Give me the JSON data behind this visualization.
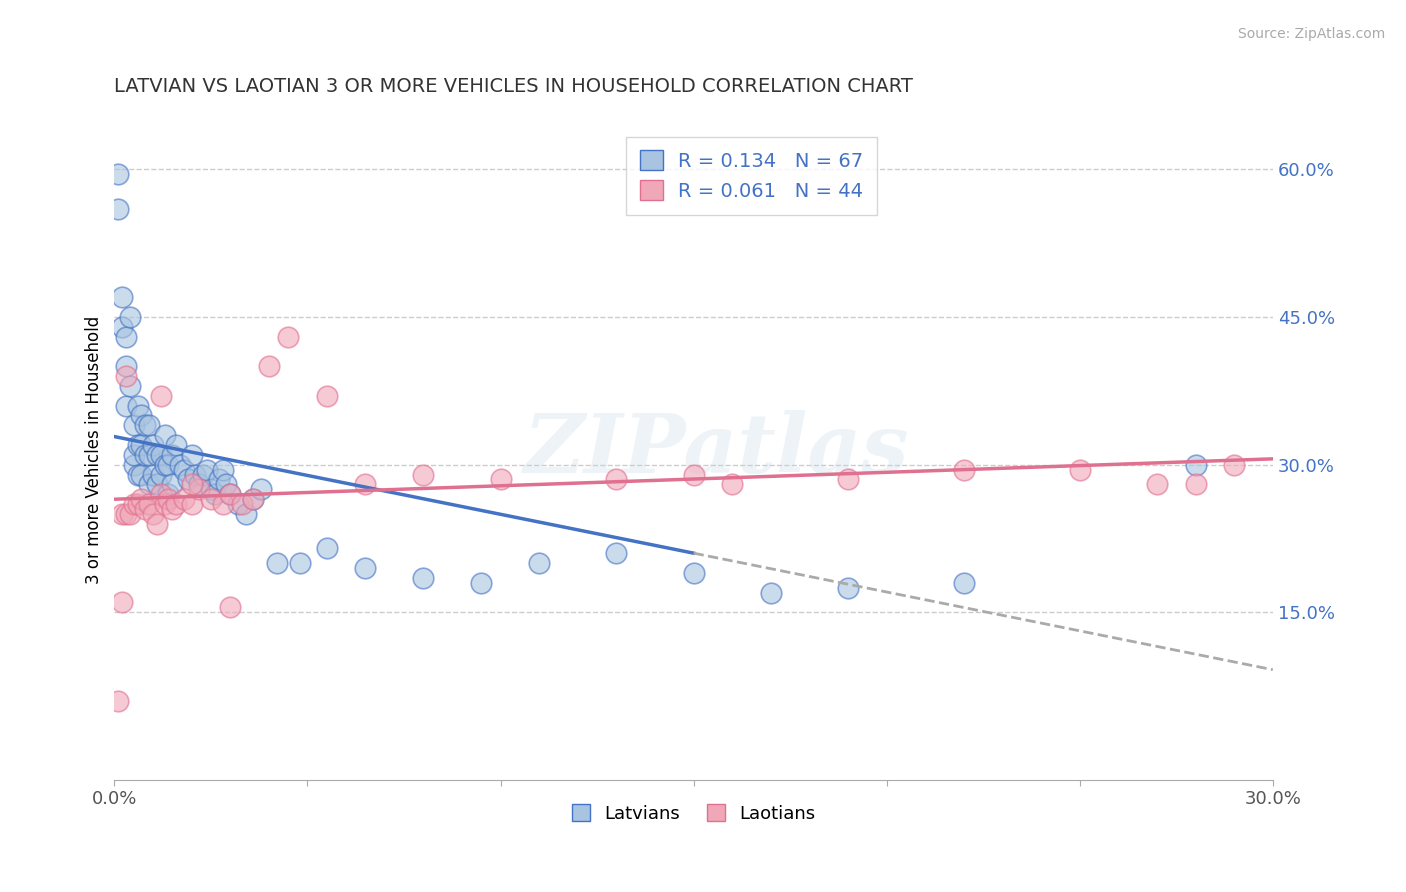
{
  "title": "LATVIAN VS LAOTIAN 3 OR MORE VEHICLES IN HOUSEHOLD CORRELATION CHART",
  "source": "Source: ZipAtlas.com",
  "ylabel": "3 or more Vehicles in Household",
  "xlabel": "",
  "xlim": [
    0.0,
    0.3
  ],
  "ylim": [
    -0.02,
    0.65
  ],
  "yticks": [
    0.0,
    0.15,
    0.3,
    0.45,
    0.6
  ],
  "ytick_labels": [
    "",
    "15.0%",
    "30.0%",
    "45.0%",
    "60.0%"
  ],
  "xticks": [
    0.0,
    0.05,
    0.1,
    0.15,
    0.2,
    0.25,
    0.3
  ],
  "xtick_labels": [
    "0.0%",
    "",
    "",
    "",
    "",
    "",
    "30.0%"
  ],
  "background_color": "#ffffff",
  "grid_color": "#cccccc",
  "latvian_color": "#a8c4e0",
  "laotian_color": "#f0a8b8",
  "latvian_line_color": "#4472c4",
  "laotian_line_color": "#e07090",
  "R_latvian": 0.134,
  "N_latvian": 67,
  "R_laotian": 0.061,
  "N_laotian": 44,
  "watermark": "ZIPatlas",
  "latvians_x": [
    0.001,
    0.001,
    0.002,
    0.002,
    0.003,
    0.003,
    0.003,
    0.004,
    0.004,
    0.005,
    0.005,
    0.005,
    0.006,
    0.006,
    0.006,
    0.007,
    0.007,
    0.007,
    0.008,
    0.008,
    0.009,
    0.009,
    0.009,
    0.01,
    0.01,
    0.011,
    0.011,
    0.012,
    0.012,
    0.013,
    0.013,
    0.014,
    0.014,
    0.015,
    0.015,
    0.016,
    0.017,
    0.018,
    0.019,
    0.02,
    0.021,
    0.022,
    0.023,
    0.024,
    0.025,
    0.026,
    0.027,
    0.028,
    0.029,
    0.03,
    0.032,
    0.034,
    0.036,
    0.038,
    0.042,
    0.048,
    0.055,
    0.065,
    0.08,
    0.095,
    0.11,
    0.13,
    0.15,
    0.17,
    0.19,
    0.22,
    0.28
  ],
  "latvians_y": [
    0.595,
    0.56,
    0.47,
    0.44,
    0.43,
    0.4,
    0.36,
    0.45,
    0.38,
    0.3,
    0.34,
    0.31,
    0.36,
    0.32,
    0.29,
    0.35,
    0.32,
    0.29,
    0.34,
    0.31,
    0.31,
    0.34,
    0.28,
    0.32,
    0.29,
    0.31,
    0.28,
    0.31,
    0.29,
    0.33,
    0.3,
    0.3,
    0.27,
    0.31,
    0.28,
    0.32,
    0.3,
    0.295,
    0.285,
    0.31,
    0.29,
    0.28,
    0.29,
    0.295,
    0.275,
    0.27,
    0.285,
    0.295,
    0.28,
    0.27,
    0.26,
    0.25,
    0.265,
    0.275,
    0.2,
    0.2,
    0.215,
    0.195,
    0.185,
    0.18,
    0.2,
    0.21,
    0.19,
    0.17,
    0.175,
    0.18,
    0.3
  ],
  "laotians_x": [
    0.001,
    0.002,
    0.003,
    0.004,
    0.005,
    0.006,
    0.007,
    0.008,
    0.009,
    0.01,
    0.011,
    0.012,
    0.013,
    0.014,
    0.015,
    0.016,
    0.018,
    0.02,
    0.022,
    0.025,
    0.028,
    0.03,
    0.033,
    0.036,
    0.04,
    0.045,
    0.055,
    0.065,
    0.08,
    0.1,
    0.13,
    0.16,
    0.19,
    0.22,
    0.25,
    0.27,
    0.28,
    0.29,
    0.002,
    0.003,
    0.012,
    0.02,
    0.03,
    0.15
  ],
  "laotians_y": [
    0.06,
    0.25,
    0.25,
    0.25,
    0.26,
    0.26,
    0.265,
    0.255,
    0.26,
    0.25,
    0.24,
    0.27,
    0.26,
    0.265,
    0.255,
    0.26,
    0.265,
    0.26,
    0.275,
    0.265,
    0.26,
    0.27,
    0.26,
    0.265,
    0.4,
    0.43,
    0.37,
    0.28,
    0.29,
    0.285,
    0.285,
    0.28,
    0.285,
    0.295,
    0.295,
    0.28,
    0.28,
    0.3,
    0.16,
    0.39,
    0.37,
    0.28,
    0.155,
    0.29
  ]
}
